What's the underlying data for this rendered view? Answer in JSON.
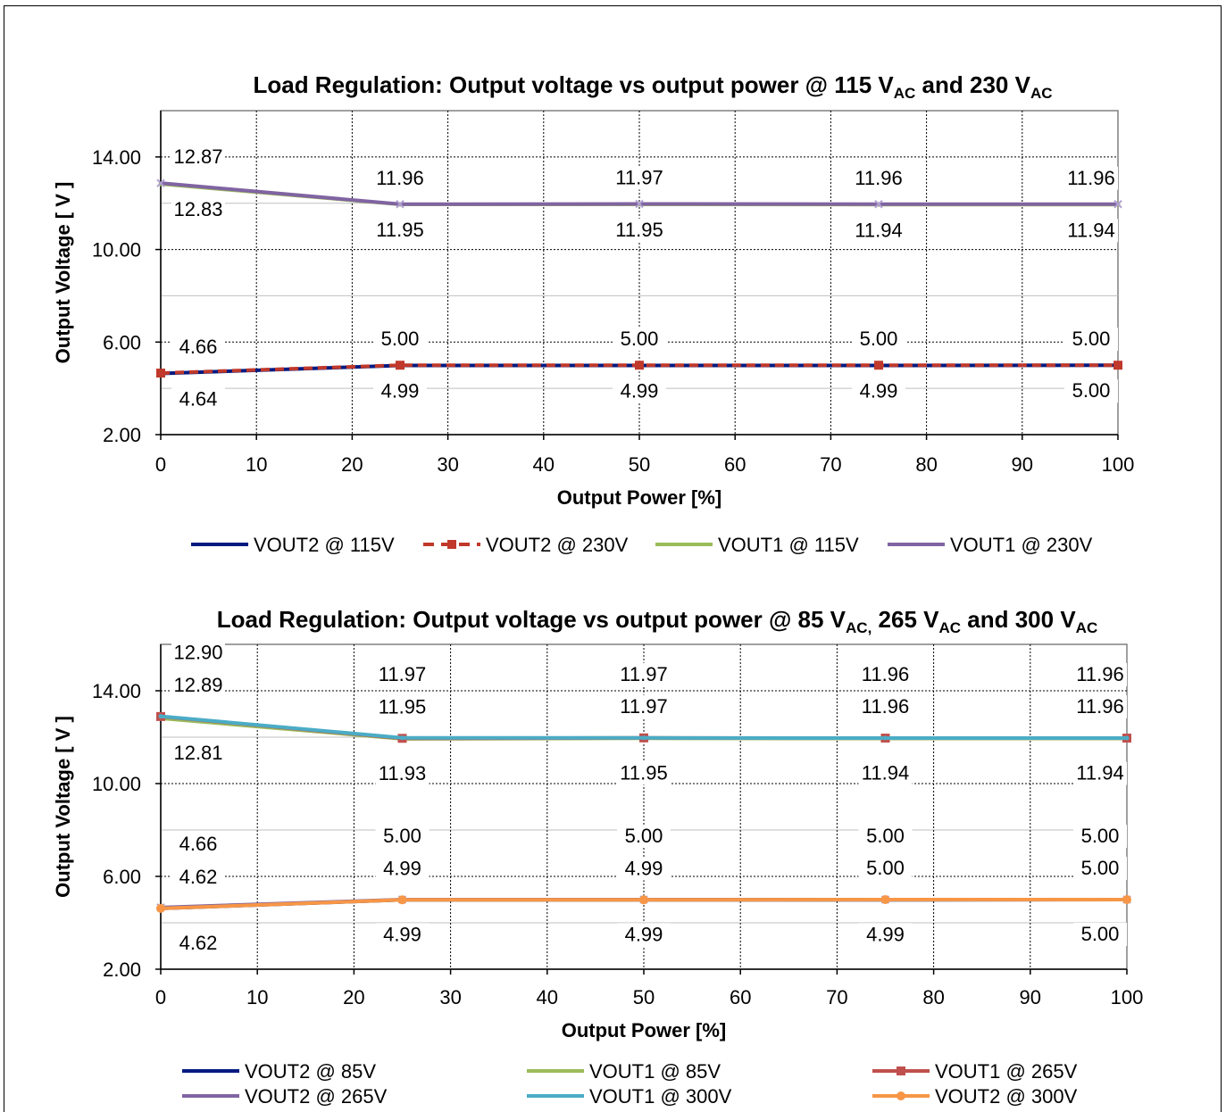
{
  "chart_data": [
    {
      "type": "line",
      "title": "Load Regulation: Output voltage vs output power @ 115 VAC and 230 VAC",
      "title_parts": [
        "Load Regulation: Output voltage vs output power @ 115 V",
        "AC",
        "  and 230 V",
        "AC"
      ],
      "xlabel": "Output Power [%]",
      "ylabel": "Output Voltage [ V ]",
      "xlim": [
        0,
        100
      ],
      "ylim": [
        2,
        16
      ],
      "x_ticks": [
        "0",
        "10",
        "20",
        "30",
        "40",
        "50",
        "60",
        "70",
        "80",
        "90",
        "100"
      ],
      "y_ticks": [
        "2.00",
        "6.00",
        "10.00",
        "14.00"
      ],
      "x": [
        0,
        25,
        50,
        75,
        100
      ],
      "legend_position": "bottom",
      "series": [
        {
          "name": "VOUT2 @ 115V",
          "values": [
            4.64,
            4.99,
            4.99,
            4.99,
            5.0
          ],
          "color": "#001a80",
          "style": "solid"
        },
        {
          "name": "VOUT2 @ 230V",
          "values": [
            4.66,
            5.0,
            5.0,
            5.0,
            5.0
          ],
          "color": "#c0392b",
          "style": "dashed"
        },
        {
          "name": "VOUT1 @ 115V",
          "values": [
            12.83,
            11.95,
            11.95,
            11.94,
            11.94
          ],
          "color": "#9bbb59",
          "style": "solid"
        },
        {
          "name": "VOUT1 @ 230V",
          "values": [
            12.87,
            11.96,
            11.97,
            11.96,
            11.96
          ],
          "color": "#8064a2",
          "style": "solid"
        }
      ],
      "data_labels": [
        {
          "text": "12.87",
          "x": 0,
          "v": 12.87,
          "pos": "upper-1"
        },
        {
          "text": "12.83",
          "x": 0,
          "v": 12.83,
          "pos": "lower-1"
        },
        {
          "text": "11.96",
          "x": 25,
          "v": 11.96,
          "pos": "upper-1"
        },
        {
          "text": "11.95",
          "x": 25,
          "v": 11.95,
          "pos": "lower-1"
        },
        {
          "text": "11.97",
          "x": 50,
          "v": 11.97,
          "pos": "upper-1"
        },
        {
          "text": "11.95",
          "x": 50,
          "v": 11.95,
          "pos": "lower-1"
        },
        {
          "text": "11.96",
          "x": 75,
          "v": 11.96,
          "pos": "upper-1"
        },
        {
          "text": "11.94",
          "x": 75,
          "v": 11.94,
          "pos": "lower-1"
        },
        {
          "text": "11.96",
          "x": 100,
          "v": 11.96,
          "pos": "upper-1"
        },
        {
          "text": "11.94",
          "x": 100,
          "v": 11.94,
          "pos": "lower-1"
        },
        {
          "text": "4.66",
          "x": 0,
          "v": 4.66,
          "pos": "upper-1"
        },
        {
          "text": "4.64",
          "x": 0,
          "v": 4.64,
          "pos": "lower-1"
        },
        {
          "text": "5.00",
          "x": 25,
          "v": 5.0,
          "pos": "upper-1"
        },
        {
          "text": "4.99",
          "x": 25,
          "v": 4.99,
          "pos": "lower-1"
        },
        {
          "text": "5.00",
          "x": 50,
          "v": 5.0,
          "pos": "upper-1"
        },
        {
          "text": "4.99",
          "x": 50,
          "v": 4.99,
          "pos": "lower-1"
        },
        {
          "text": "5.00",
          "x": 75,
          "v": 5.0,
          "pos": "upper-1"
        },
        {
          "text": "4.99",
          "x": 75,
          "v": 4.99,
          "pos": "lower-1"
        },
        {
          "text": "5.00",
          "x": 100,
          "v": 5.0,
          "pos": "upper-1"
        },
        {
          "text": "5.00",
          "x": 100,
          "v": 5.0,
          "pos": "lower-1"
        }
      ]
    },
    {
      "type": "line",
      "title": "Load Regulation: Output voltage vs output power @ 85 VAC, 265 VAC and 300 VAC",
      "title_parts": [
        "Load Regulation: Output voltage vs output power @ 85 V",
        "AC,",
        " 265 V",
        "AC",
        " and 300 V",
        "AC"
      ],
      "xlabel": "Output Power [%]",
      "ylabel": "Output Voltage [ V ]",
      "xlim": [
        0,
        100
      ],
      "ylim": [
        2,
        16
      ],
      "x_ticks": [
        "0",
        "10",
        "20",
        "30",
        "40",
        "50",
        "60",
        "70",
        "80",
        "90",
        "100"
      ],
      "y_ticks": [
        "2.00",
        "6.00",
        "10.00",
        "14.00"
      ],
      "x": [
        0,
        25,
        50,
        75,
        100
      ],
      "legend_position": "bottom",
      "series": [
        {
          "name": "VOUT2 @ 85V",
          "values": [
            4.62,
            4.99,
            4.99,
            4.99,
            5.0
          ],
          "color": "#001a80",
          "style": "solid"
        },
        {
          "name": "VOUT1 @ 85V",
          "values": [
            12.81,
            11.93,
            11.95,
            11.94,
            11.94
          ],
          "color": "#9bbb59",
          "style": "solid"
        },
        {
          "name": "VOUT1 @ 265V",
          "values": [
            12.89,
            11.95,
            11.97,
            11.96,
            11.96
          ],
          "color": "#c0504d",
          "style": "solid"
        },
        {
          "name": "VOUT2 @ 265V",
          "values": [
            4.66,
            5.0,
            5.0,
            5.0,
            5.0
          ],
          "color": "#8064a2",
          "style": "solid"
        },
        {
          "name": "VOUT1 @ 300V",
          "values": [
            12.9,
            11.97,
            11.97,
            11.96,
            11.96
          ],
          "color": "#4bacc6",
          "style": "solid"
        },
        {
          "name": "VOUT2 @ 300V",
          "values": [
            4.62,
            4.99,
            4.99,
            5.0,
            5.0
          ],
          "color": "#f79646",
          "style": "solid"
        }
      ],
      "data_labels": [
        {
          "text": "12.90",
          "x": 0,
          "v": 12.9,
          "pos": "upper-2"
        },
        {
          "text": "12.89",
          "x": 0,
          "v": 12.89,
          "pos": "upper-1"
        },
        {
          "text": "12.81",
          "x": 0,
          "v": 12.81,
          "pos": "lower-1"
        },
        {
          "text": "11.97",
          "x": 25,
          "v": 11.97,
          "pos": "upper-2"
        },
        {
          "text": "11.95",
          "x": 25,
          "v": 11.95,
          "pos": "upper-1"
        },
        {
          "text": "11.93",
          "x": 25,
          "v": 11.93,
          "pos": "lower-1"
        },
        {
          "text": "11.97",
          "x": 50,
          "v": 11.97,
          "pos": "upper-2"
        },
        {
          "text": "11.97",
          "x": 50,
          "v": 11.97,
          "pos": "upper-1"
        },
        {
          "text": "11.95",
          "x": 50,
          "v": 11.95,
          "pos": "lower-1"
        },
        {
          "text": "11.96",
          "x": 75,
          "v": 11.96,
          "pos": "upper-2"
        },
        {
          "text": "11.96",
          "x": 75,
          "v": 11.96,
          "pos": "upper-1"
        },
        {
          "text": "11.94",
          "x": 75,
          "v": 11.94,
          "pos": "lower-1"
        },
        {
          "text": "11.96",
          "x": 100,
          "v": 11.96,
          "pos": "upper-2"
        },
        {
          "text": "11.96",
          "x": 100,
          "v": 11.96,
          "pos": "upper-1"
        },
        {
          "text": "11.94",
          "x": 100,
          "v": 11.94,
          "pos": "lower-1"
        },
        {
          "text": "4.66",
          "x": 0,
          "v": 4.66,
          "pos": "upper-2"
        },
        {
          "text": "4.62",
          "x": 0,
          "v": 4.62,
          "pos": "upper-1"
        },
        {
          "text": "4.62",
          "x": 0,
          "v": 4.62,
          "pos": "lower-1"
        },
        {
          "text": "5.00",
          "x": 25,
          "v": 5.0,
          "pos": "upper-2"
        },
        {
          "text": "4.99",
          "x": 25,
          "v": 4.99,
          "pos": "upper-1"
        },
        {
          "text": "4.99",
          "x": 25,
          "v": 4.99,
          "pos": "lower-1"
        },
        {
          "text": "5.00",
          "x": 50,
          "v": 5.0,
          "pos": "upper-2"
        },
        {
          "text": "4.99",
          "x": 50,
          "v": 4.99,
          "pos": "upper-1"
        },
        {
          "text": "4.99",
          "x": 50,
          "v": 4.99,
          "pos": "lower-1"
        },
        {
          "text": "5.00",
          "x": 75,
          "v": 5.0,
          "pos": "upper-2"
        },
        {
          "text": "5.00",
          "x": 75,
          "v": 5.0,
          "pos": "upper-1"
        },
        {
          "text": "4.99",
          "x": 75,
          "v": 4.99,
          "pos": "lower-1"
        },
        {
          "text": "5.00",
          "x": 100,
          "v": 5.0,
          "pos": "upper-2"
        },
        {
          "text": "5.00",
          "x": 100,
          "v": 5.0,
          "pos": "upper-1"
        },
        {
          "text": "5.00",
          "x": 100,
          "v": 5.0,
          "pos": "lower-1"
        }
      ]
    }
  ]
}
